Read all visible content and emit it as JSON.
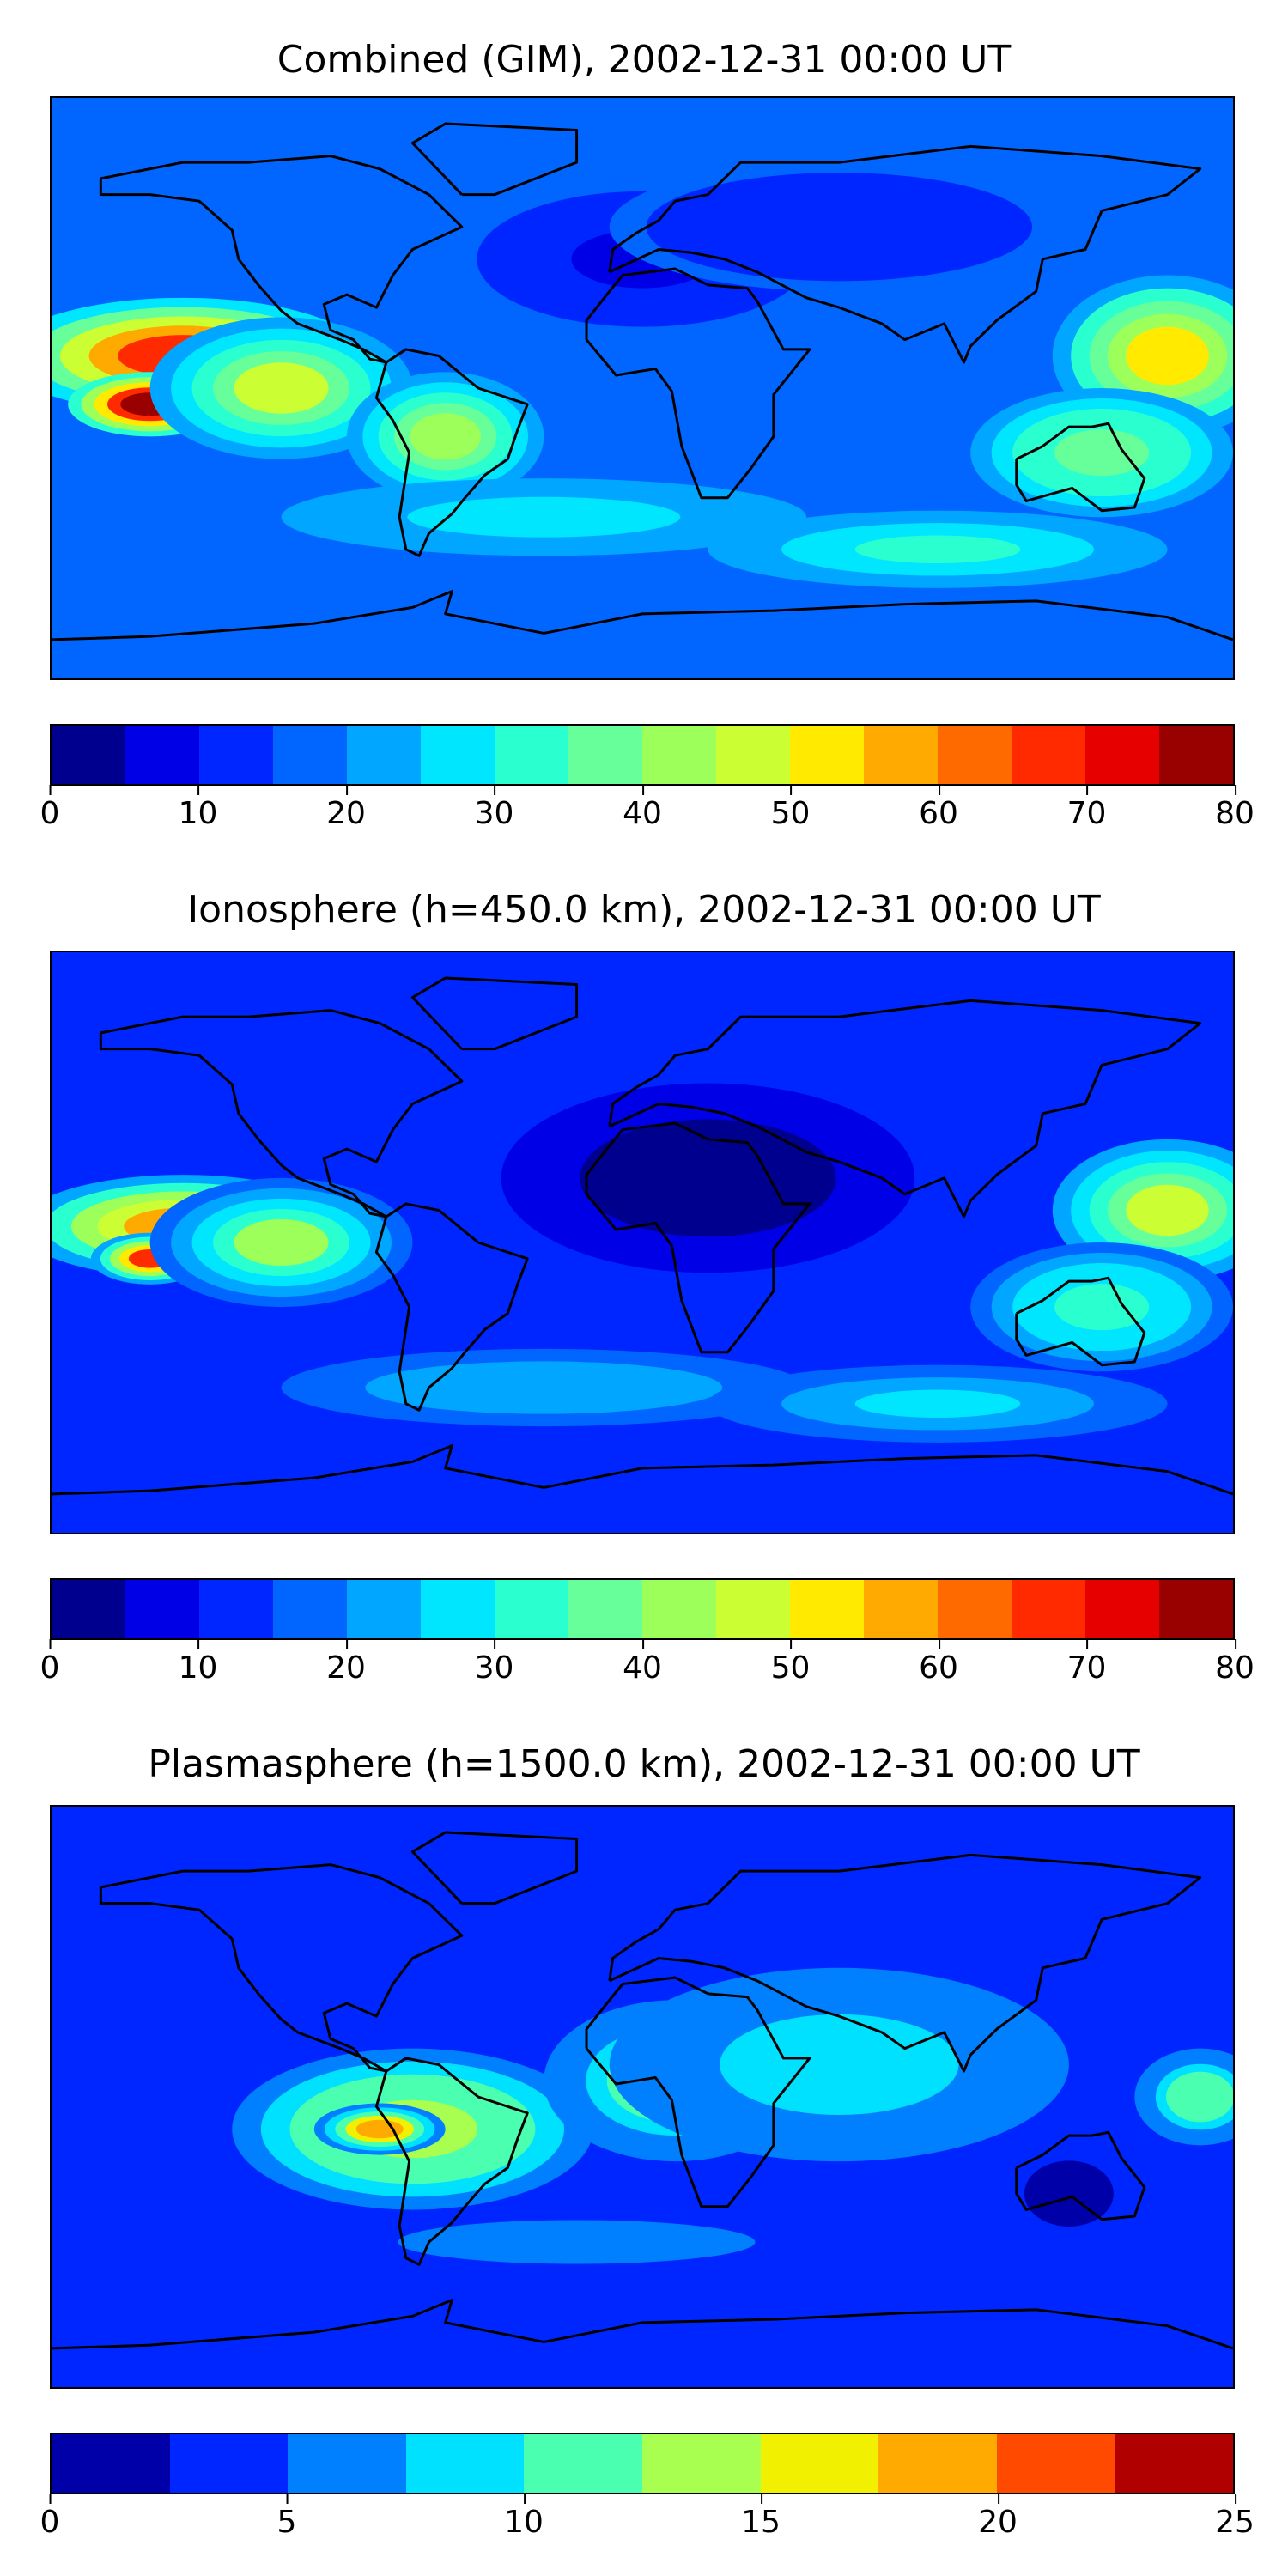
{
  "panels": [
    {
      "title": "Combined (GIM), 2002-12-31 00:00 UT",
      "colorbar": {
        "bounds": [
          0,
          5,
          10,
          15,
          20,
          25,
          30,
          35,
          40,
          45,
          50,
          55,
          60,
          65,
          70,
          75,
          80
        ],
        "colors": [
          "#00008f",
          "#0000e6",
          "#0026ff",
          "#0066ff",
          "#00a6ff",
          "#00e6ff",
          "#2affcf",
          "#66ff99",
          "#9dff5a",
          "#ccff33",
          "#ffea00",
          "#ffaa00",
          "#ff6a00",
          "#ff2a00",
          "#e60000",
          "#990000"
        ],
        "ticks": [
          "0",
          "10",
          "20",
          "30",
          "40",
          "50",
          "60",
          "70",
          "80"
        ]
      },
      "features": {
        "background": 18,
        "blobs": [
          {
            "lon": -140,
            "lat": 10,
            "rx": 55,
            "ry": 18,
            "val": 65
          },
          {
            "lon": -150,
            "lat": -5,
            "rx": 25,
            "ry": 10,
            "val": 78
          },
          {
            "lon": -110,
            "lat": 0,
            "rx": 40,
            "ry": 22,
            "val": 45
          },
          {
            "lon": -60,
            "lat": -15,
            "rx": 30,
            "ry": 20,
            "val": 40
          },
          {
            "lon": 160,
            "lat": 10,
            "rx": 35,
            "ry": 25,
            "val": 50
          },
          {
            "lon": 140,
            "lat": -20,
            "rx": 40,
            "ry": 20,
            "val": 38
          },
          {
            "lon": 0,
            "lat": 40,
            "rx": 60,
            "ry": 25,
            "val": 8
          },
          {
            "lon": 60,
            "lat": 50,
            "rx": 70,
            "ry": 20,
            "val": 10
          },
          {
            "lon": -30,
            "lat": -40,
            "rx": 80,
            "ry": 12,
            "val": 28
          },
          {
            "lon": 90,
            "lat": -50,
            "rx": 70,
            "ry": 12,
            "val": 30
          }
        ]
      }
    },
    {
      "title": "Ionosphere  (h=450.0 km), 2002-12-31 00:00 UT",
      "colorbar": {
        "bounds": [
          0,
          5,
          10,
          15,
          20,
          25,
          30,
          35,
          40,
          45,
          50,
          55,
          60,
          65,
          70,
          75,
          80
        ],
        "colors": [
          "#00008f",
          "#0000e6",
          "#0026ff",
          "#0066ff",
          "#00a6ff",
          "#00e6ff",
          "#2affcf",
          "#66ff99",
          "#9dff5a",
          "#ccff33",
          "#ffea00",
          "#ffaa00",
          "#ff6a00",
          "#ff2a00",
          "#e60000",
          "#990000"
        ],
        "ticks": [
          "0",
          "10",
          "20",
          "30",
          "40",
          "50",
          "60",
          "70",
          "80"
        ]
      },
      "features": {
        "background": 14,
        "blobs": [
          {
            "lon": -140,
            "lat": 5,
            "rx": 50,
            "ry": 16,
            "val": 58
          },
          {
            "lon": -150,
            "lat": -5,
            "rx": 18,
            "ry": 8,
            "val": 65
          },
          {
            "lon": -110,
            "lat": 0,
            "rx": 40,
            "ry": 20,
            "val": 40
          },
          {
            "lon": 20,
            "lat": 20,
            "rx": 75,
            "ry": 35,
            "val": 2
          },
          {
            "lon": 160,
            "lat": 10,
            "rx": 35,
            "ry": 22,
            "val": 45
          },
          {
            "lon": 140,
            "lat": -20,
            "rx": 40,
            "ry": 20,
            "val": 33
          },
          {
            "lon": -30,
            "lat": -45,
            "rx": 80,
            "ry": 12,
            "val": 24
          },
          {
            "lon": 90,
            "lat": -50,
            "rx": 70,
            "ry": 12,
            "val": 27
          }
        ]
      }
    },
    {
      "title": "Plasmasphere (h=1500.0 km), 2002-12-31 00:00 UT",
      "colorbar": {
        "bounds": [
          0,
          2.5,
          5,
          7.5,
          10,
          12.5,
          15,
          17.5,
          20,
          22.5,
          25
        ],
        "colors": [
          "#0000a8",
          "#0026ff",
          "#0080ff",
          "#00e0ff",
          "#4affb0",
          "#a8ff50",
          "#f0f000",
          "#ffaa00",
          "#ff4a00",
          "#b00000"
        ],
        "ticks": [
          "0",
          "5",
          "10",
          "15",
          "20",
          "25"
        ]
      },
      "features": {
        "background": 4,
        "blobs": [
          {
            "lon": -70,
            "lat": -10,
            "rx": 55,
            "ry": 25,
            "val": 14
          },
          {
            "lon": -80,
            "lat": -10,
            "rx": 20,
            "ry": 8,
            "val": 18
          },
          {
            "lon": 10,
            "lat": 5,
            "rx": 40,
            "ry": 25,
            "val": 12
          },
          {
            "lon": 10,
            "lat": 8,
            "rx": 10,
            "ry": 6,
            "val": 16
          },
          {
            "lon": 60,
            "lat": 10,
            "rx": 70,
            "ry": 30,
            "val": 9
          },
          {
            "lon": 170,
            "lat": 0,
            "rx": 20,
            "ry": 15,
            "val": 12
          },
          {
            "lon": -20,
            "lat": -45,
            "rx": 80,
            "ry": 10,
            "val": 6
          },
          {
            "lon": 130,
            "lat": -30,
            "rx": 20,
            "ry": 15,
            "val": 1
          }
        ]
      }
    }
  ]
}
